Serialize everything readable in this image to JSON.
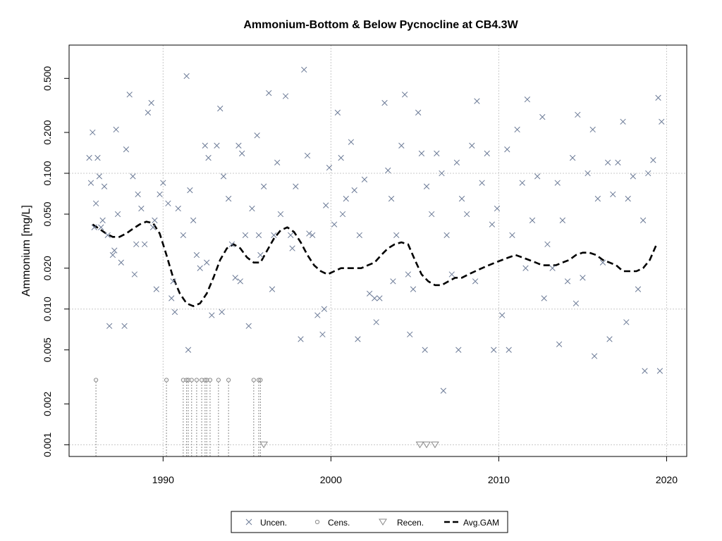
{
  "chart_data": {
    "type": "scatter",
    "title": "Ammonium-Bottom & Below Pycnocline at CB4.3W",
    "xlabel": "",
    "ylabel": "Ammonium [mg/L]",
    "xlim": [
      1984.4,
      2021.2
    ],
    "ylim": [
      0.00082,
      0.88
    ],
    "log_y": true,
    "grid": true,
    "x_ticks": [
      1990,
      2000,
      2010,
      2020
    ],
    "x_tick_labels": [
      "1990",
      "2000",
      "2010",
      "2020"
    ],
    "y_ticks": [
      0.001,
      0.002,
      0.005,
      0.01,
      0.02,
      0.05,
      0.1,
      0.2,
      0.5
    ],
    "y_tick_labels": [
      "0.001",
      "0.002",
      "0.005",
      "0.010",
      "0.020",
      "0.050",
      "0.100",
      "0.200",
      "0.500"
    ],
    "legend": {
      "position": "bottom-center",
      "entries": [
        "Uncen.",
        "Cens.",
        "Recen.",
        "Avg.GAM"
      ]
    },
    "colors": {
      "uncensored": "#6b7a96",
      "censored": "#8a8a8a",
      "gam": "#000000",
      "grid": "#c8c8c8"
    },
    "series": [
      {
        "name": "Uncen.",
        "marker": "x",
        "x": [
          1985.6,
          1985.7,
          1985.8,
          1985.9,
          1986.0,
          1986.1,
          1986.2,
          1986.4,
          1986.5,
          1986.7,
          1986.8,
          1987.0,
          1987.2,
          1987.3,
          1987.5,
          1987.7,
          1987.8,
          1988.0,
          1988.2,
          1988.4,
          1988.5,
          1988.7,
          1988.9,
          1989.1,
          1989.3,
          1989.5,
          1989.6,
          1989.8,
          1990.0,
          1990.3,
          1990.5,
          1990.7,
          1990.9,
          1991.2,
          1991.4,
          1991.6,
          1991.8,
          1992.0,
          1992.2,
          1992.5,
          1992.7,
          1992.9,
          1993.2,
          1993.4,
          1993.6,
          1993.9,
          1994.1,
          1994.3,
          1994.5,
          1994.7,
          1994.9,
          1995.1,
          1995.3,
          1995.6,
          1995.8,
          1996.0,
          1996.3,
          1996.5,
          1996.8,
          1997.0,
          1997.3,
          1997.6,
          1997.9,
          1998.2,
          1998.4,
          1998.6,
          1998.9,
          1999.2,
          1999.5,
          1999.7,
          1999.9,
          2000.2,
          2000.4,
          2000.6,
          2000.9,
          2001.2,
          2001.4,
          2001.7,
          2002.0,
          2002.3,
          2002.6,
          2002.9,
          2003.2,
          2003.4,
          2003.6,
          2003.9,
          2004.2,
          2004.4,
          2004.6,
          2004.9,
          2005.2,
          2005.4,
          2005.7,
          2006.0,
          2006.3,
          2006.6,
          2006.9,
          2007.2,
          2007.5,
          2007.8,
          2008.1,
          2008.4,
          2008.7,
          2009.0,
          2009.3,
          2009.6,
          2009.9,
          2010.2,
          2010.5,
          2010.8,
          2011.1,
          2011.4,
          2011.7,
          2012.0,
          2012.3,
          2012.6,
          2012.9,
          2013.2,
          2013.5,
          2013.8,
          2014.1,
          2014.4,
          2014.7,
          2015.0,
          2015.3,
          2015.6,
          2015.9,
          2016.2,
          2016.5,
          2016.8,
          2017.1,
          2017.4,
          2017.7,
          2018.0,
          2018.3,
          2018.6,
          2018.9,
          2019.2,
          2019.5,
          2019.7,
          1986.3,
          1987.1,
          1988.3,
          1989.4,
          1990.6,
          1991.5,
          1992.6,
          1993.5,
          1994.6,
          1995.7,
          1996.6,
          1997.7,
          1998.7,
          1999.6,
          2000.7,
          2001.6,
          2002.7,
          2003.7,
          2004.7,
          2005.6,
          2006.7,
          2007.6,
          2008.6,
          2009.7,
          2010.6,
          2011.6,
          2012.7,
          2013.6,
          2014.6,
          2015.7,
          2016.6,
          2017.6,
          2018.7,
          2019.6
        ],
        "y": [
          0.13,
          0.085,
          0.2,
          0.04,
          0.06,
          0.13,
          0.095,
          0.045,
          0.08,
          0.035,
          0.0075,
          0.025,
          0.21,
          0.05,
          0.022,
          0.0075,
          0.15,
          0.38,
          0.095,
          0.03,
          0.07,
          0.055,
          0.03,
          0.28,
          0.33,
          0.045,
          0.014,
          0.07,
          0.085,
          0.06,
          0.012,
          0.0095,
          0.055,
          0.035,
          0.52,
          0.075,
          0.045,
          0.025,
          0.02,
          0.16,
          0.13,
          0.009,
          0.16,
          0.3,
          0.095,
          0.065,
          0.03,
          0.017,
          0.16,
          0.14,
          0.035,
          0.0075,
          0.055,
          0.19,
          0.025,
          0.08,
          0.39,
          0.014,
          0.12,
          0.05,
          0.37,
          0.035,
          0.08,
          0.006,
          0.58,
          0.135,
          0.035,
          0.009,
          0.0065,
          0.058,
          0.11,
          0.042,
          0.28,
          0.13,
          0.065,
          0.17,
          0.075,
          0.035,
          0.09,
          0.013,
          0.012,
          0.012,
          0.33,
          0.105,
          0.065,
          0.035,
          0.16,
          0.38,
          0.018,
          0.014,
          0.28,
          0.14,
          0.08,
          0.05,
          0.14,
          0.1,
          0.035,
          0.018,
          0.12,
          0.065,
          0.05,
          0.16,
          0.34,
          0.085,
          0.14,
          0.042,
          0.055,
          0.009,
          0.15,
          0.035,
          0.21,
          0.085,
          0.35,
          0.045,
          0.095,
          0.26,
          0.03,
          0.02,
          0.085,
          0.045,
          0.016,
          0.13,
          0.27,
          0.017,
          0.1,
          0.21,
          0.065,
          0.022,
          0.12,
          0.07,
          0.12,
          0.24,
          0.065,
          0.095,
          0.014,
          0.045,
          0.1,
          0.125,
          0.36,
          0.24,
          0.04,
          0.027,
          0.018,
          0.04,
          0.016,
          0.005,
          0.022,
          0.0095,
          0.016,
          0.035,
          0.035,
          0.028,
          0.036,
          0.01,
          0.05,
          0.006,
          0.008,
          0.016,
          0.0065,
          0.005,
          0.0025,
          0.005,
          0.016,
          0.005,
          0.005,
          0.02,
          0.012,
          0.0055,
          0.011,
          0.0045,
          0.006,
          0.008,
          0.0035,
          0.0035
        ]
      },
      {
        "name": "Cens.",
        "marker": "o",
        "x": [
          1986.0,
          1990.2,
          1991.2,
          1991.4,
          1991.5,
          1991.7,
          1992.0,
          1992.3,
          1992.5,
          1992.6,
          1992.8,
          1993.3,
          1993.9,
          1995.4,
          1995.7,
          1995.8
        ],
        "y": [
          0.003,
          0.003,
          0.003,
          0.003,
          0.003,
          0.003,
          0.003,
          0.003,
          0.003,
          0.003,
          0.003,
          0.003,
          0.003,
          0.003,
          0.003,
          0.003
        ]
      },
      {
        "name": "Recen.",
        "marker": "triangle-down",
        "x": [
          1996.0,
          2005.3,
          2005.7,
          2006.2
        ],
        "y": [
          0.001,
          0.001,
          0.001,
          0.001
        ]
      },
      {
        "name": "Avg.GAM",
        "marker": "dashed-line",
        "x": [
          1985.8,
          1986.2,
          1986.6,
          1987.0,
          1987.4,
          1987.8,
          1988.2,
          1988.6,
          1989.0,
          1989.4,
          1989.8,
          1990.2,
          1990.6,
          1991.0,
          1991.4,
          1991.8,
          1992.2,
          1992.6,
          1993.0,
          1993.4,
          1993.8,
          1994.2,
          1994.6,
          1995.0,
          1995.4,
          1995.8,
          1996.2,
          1996.6,
          1997.0,
          1997.4,
          1997.8,
          1998.2,
          1998.6,
          1999.0,
          1999.4,
          1999.8,
          2000.2,
          2000.6,
          2001.0,
          2001.4,
          2001.8,
          2002.2,
          2002.6,
          2003.0,
          2003.4,
          2003.8,
          2004.2,
          2004.6,
          2005.0,
          2005.4,
          2005.8,
          2006.2,
          2006.6,
          2007.0,
          2007.4,
          2007.8,
          2008.2,
          2008.6,
          2009.0,
          2009.4,
          2009.8,
          2010.2,
          2010.6,
          2011.0,
          2011.4,
          2011.8,
          2012.2,
          2012.6,
          2013.0,
          2013.4,
          2013.8,
          2014.2,
          2014.6,
          2015.0,
          2015.4,
          2015.8,
          2016.2,
          2016.6,
          2017.0,
          2017.4,
          2017.8,
          2018.2,
          2018.6,
          2019.0,
          2019.4
        ],
        "y": [
          0.042,
          0.039,
          0.036,
          0.034,
          0.034,
          0.036,
          0.039,
          0.042,
          0.044,
          0.043,
          0.036,
          0.025,
          0.017,
          0.013,
          0.011,
          0.0105,
          0.011,
          0.013,
          0.017,
          0.023,
          0.028,
          0.03,
          0.028,
          0.024,
          0.022,
          0.022,
          0.027,
          0.033,
          0.038,
          0.04,
          0.037,
          0.031,
          0.025,
          0.021,
          0.019,
          0.018,
          0.019,
          0.02,
          0.02,
          0.02,
          0.02,
          0.021,
          0.022,
          0.025,
          0.028,
          0.03,
          0.031,
          0.03,
          0.023,
          0.018,
          0.016,
          0.015,
          0.015,
          0.016,
          0.017,
          0.017,
          0.018,
          0.019,
          0.02,
          0.021,
          0.022,
          0.023,
          0.024,
          0.025,
          0.024,
          0.023,
          0.022,
          0.021,
          0.021,
          0.021,
          0.022,
          0.023,
          0.025,
          0.026,
          0.026,
          0.025,
          0.023,
          0.022,
          0.021,
          0.019,
          0.019,
          0.019,
          0.02,
          0.023,
          0.03
        ]
      }
    ]
  }
}
